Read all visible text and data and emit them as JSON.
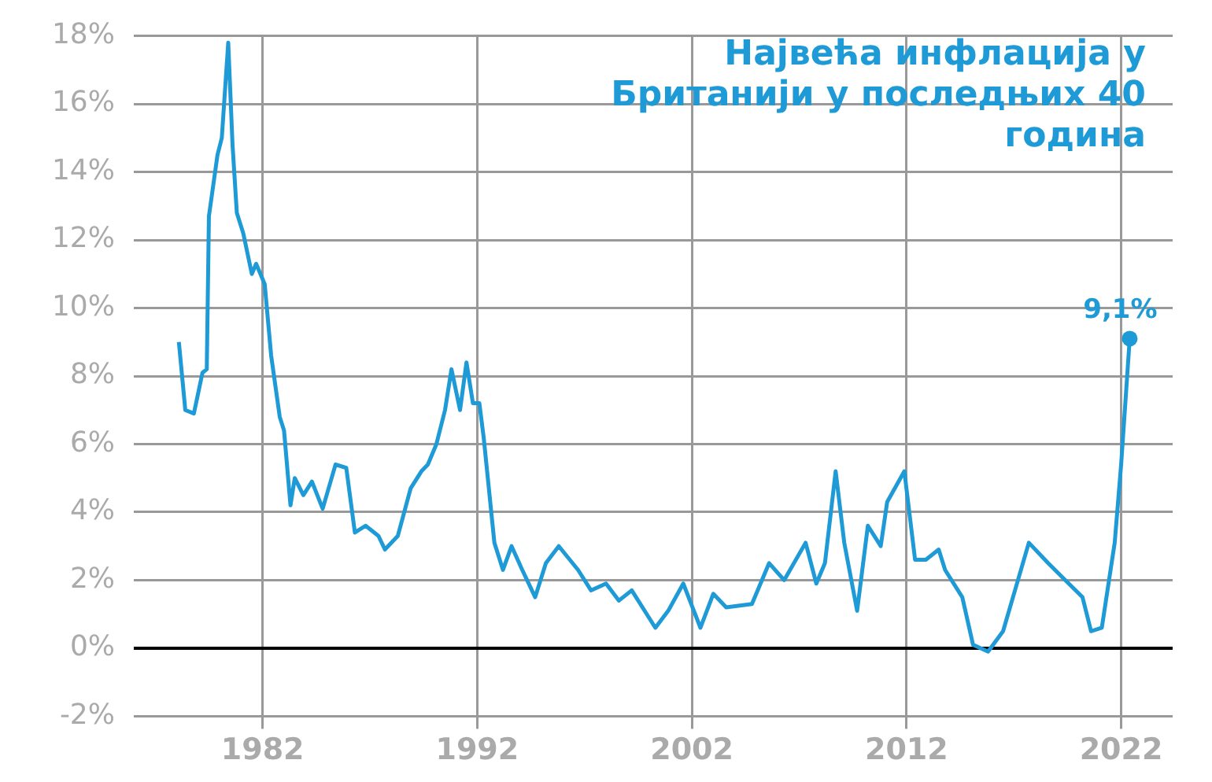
{
  "chart_data": {
    "type": "line",
    "title": "Највећа инфлација у Британији у последњих 40 година",
    "x": [
      1978.1,
      1978.4,
      1978.8,
      1979.2,
      1979.4,
      1979.5,
      1979.9,
      1980.1,
      1980.4,
      1980.6,
      1980.8,
      1981.1,
      1981.5,
      1981.7,
      1982.1,
      1982.4,
      1982.8,
      1983.0,
      1983.3,
      1983.5,
      1983.9,
      1984.3,
      1984.8,
      1985.4,
      1985.9,
      1986.3,
      1986.8,
      1987.4,
      1987.7,
      1988.3,
      1988.9,
      1989.4,
      1989.7,
      1990.1,
      1990.5,
      1990.8,
      1991.2,
      1991.5,
      1991.8,
      1992.1,
      1992.3,
      1992.8,
      1993.2,
      1993.6,
      1994.1,
      1994.7,
      1995.2,
      1995.8,
      1996.7,
      1997.3,
      1998.0,
      1998.6,
      1999.2,
      2000.3,
      2000.9,
      2001.6,
      2002.4,
      2003.0,
      2003.6,
      2004.8,
      2005.6,
      2006.3,
      2007.3,
      2007.8,
      2008.2,
      2008.7,
      2009.1,
      2009.7,
      2010.2,
      2010.8,
      2011.1,
      2011.9,
      2012.4,
      2012.9,
      2013.5,
      2013.8,
      2014.6,
      2015.1,
      2015.8,
      2016.5,
      2017.1,
      2017.7,
      2018.6,
      2019.4,
      2020.2,
      2020.6,
      2021.1,
      2021.7,
      2022.0,
      2022.4
    ],
    "series": [
      {
        "color": "#1e9ad6",
        "values": [
          9.0,
          7.0,
          6.9,
          8.1,
          8.2,
          12.7,
          14.5,
          15.0,
          17.8,
          14.8,
          12.8,
          12.2,
          11.0,
          11.3,
          10.7,
          8.6,
          6.8,
          6.4,
          4.2,
          5.0,
          4.5,
          4.9,
          4.1,
          5.4,
          5.3,
          3.4,
          3.6,
          3.3,
          2.9,
          3.3,
          4.7,
          5.2,
          5.4,
          6.0,
          7.0,
          8.2,
          7.0,
          8.4,
          7.2,
          7.2,
          6.2,
          3.1,
          2.3,
          3.0,
          2.3,
          1.5,
          2.5,
          3.0,
          2.3,
          1.7,
          1.9,
          1.4,
          1.7,
          0.6,
          1.1,
          1.9,
          0.6,
          1.6,
          1.2,
          1.3,
          2.5,
          2.0,
          3.1,
          1.9,
          2.5,
          5.2,
          3.1,
          1.1,
          3.6,
          3.0,
          4.3,
          5.2,
          2.6,
          2.6,
          2.9,
          2.3,
          1.5,
          0.1,
          -0.1,
          0.5,
          1.8,
          3.1,
          2.5,
          2.0,
          1.5,
          0.5,
          0.6,
          3.1,
          5.4,
          9.1
        ],
        "value_labels": [
          null,
          null,
          null,
          null,
          null,
          null,
          null,
          null,
          null,
          null,
          null,
          null,
          null,
          null,
          null,
          null,
          null,
          null,
          null,
          null,
          null,
          null,
          null,
          null,
          null,
          null,
          null,
          null,
          null,
          null,
          null,
          null,
          null,
          null,
          null,
          null,
          null,
          null,
          null,
          null,
          null,
          null,
          null,
          null,
          null,
          null,
          null,
          null,
          null,
          null,
          null,
          null,
          null,
          null,
          null,
          null,
          null,
          null,
          null,
          null,
          null,
          null,
          null,
          null,
          null,
          null,
          null,
          null,
          null,
          null,
          null,
          null,
          null,
          null,
          null,
          null,
          null,
          null,
          null,
          null,
          null,
          null,
          null,
          null,
          null,
          null,
          null,
          null,
          null,
          "9,1%"
        ]
      }
    ],
    "xlim": [
      1976,
      2024.4
    ],
    "xticks": [
      1982,
      1992,
      2002,
      2012,
      2022
    ],
    "ylim": [
      -2,
      18
    ],
    "yticks": [
      {
        "value": -2,
        "label": "-2%"
      },
      {
        "value": 0,
        "label": "0%"
      },
      {
        "value": 2,
        "label": "2%"
      },
      {
        "value": 4,
        "label": "4%"
      },
      {
        "value": 6,
        "label": "6%"
      },
      {
        "value": 8,
        "label": "8%"
      },
      {
        "value": 10,
        "label": "10%"
      },
      {
        "value": 12,
        "label": "12%"
      },
      {
        "value": 14,
        "label": "14%"
      },
      {
        "value": 16,
        "label": "16%"
      },
      {
        "value": 18,
        "label": "18%"
      }
    ],
    "ref_lines": [
      {
        "axis": "y",
        "value": 0,
        "color": "#000000"
      }
    ],
    "grid": true,
    "legend": false,
    "marker": "none",
    "line_style": "solid"
  }
}
